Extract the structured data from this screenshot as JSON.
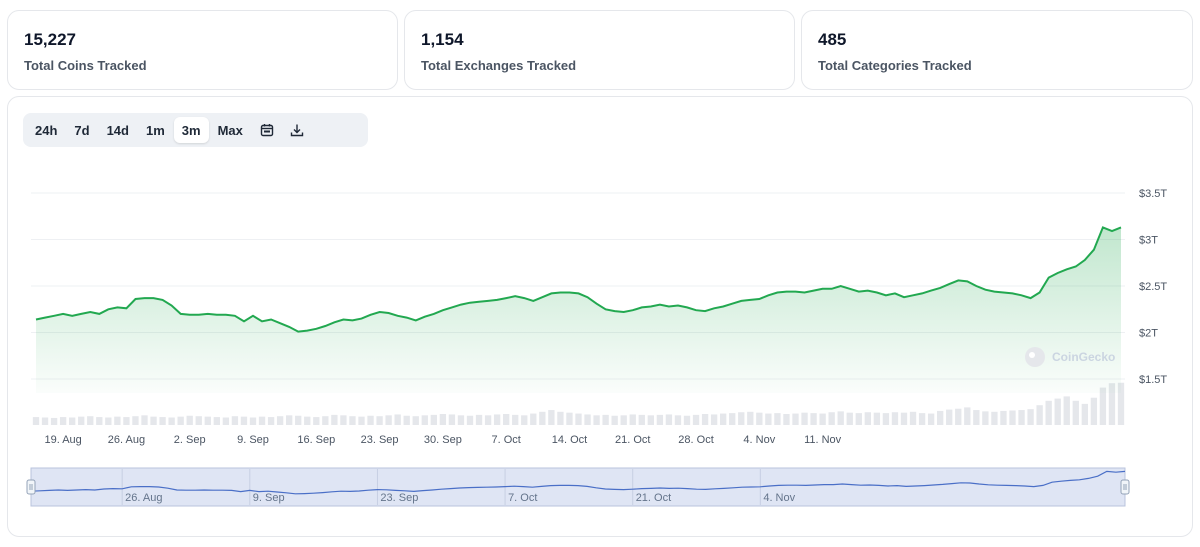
{
  "stats": [
    {
      "value": "15,227",
      "label": "Total Coins Tracked"
    },
    {
      "value": "1,154",
      "label": "Total Exchanges Tracked"
    },
    {
      "value": "485",
      "label": "Total Categories Tracked"
    }
  ],
  "toolbar": {
    "ranges": [
      "24h",
      "7d",
      "14d",
      "1m",
      "3m",
      "Max"
    ],
    "active_range": "3m",
    "calendar_icon": "calendar-icon",
    "download_icon": "download-icon"
  },
  "watermark": "CoinGecko",
  "colors": {
    "line": "#22a850",
    "volume": "#e5e7eb",
    "navigator_line": "#4a6fc7",
    "navigator_fill": "#dfe5f4"
  },
  "chart_data": {
    "type": "area",
    "ylabel": "",
    "xlabel": "",
    "ylim": [
      1.5,
      3.5
    ],
    "yticks": [
      1.5,
      2,
      2.5,
      3,
      3.5
    ],
    "ytick_labels": [
      "$1.5T",
      "$2T",
      "$2.5T",
      "$3T",
      "$3.5T"
    ],
    "xtick_labels": [
      "19. Aug",
      "26. Aug",
      "2. Sep",
      "9. Sep",
      "16. Sep",
      "23. Sep",
      "30. Sep",
      "7. Oct",
      "14. Oct",
      "21. Oct",
      "28. Oct",
      "4. Nov",
      "11. Nov"
    ],
    "navigator_tick_labels": [
      "26. Aug",
      "9. Sep",
      "23. Sep",
      "7. Oct",
      "21. Oct",
      "4. Nov"
    ],
    "x_start": "2024-08-16",
    "x_end": "2024-11-13",
    "series": [
      {
        "values": [
          2.14,
          2.16,
          2.18,
          2.2,
          2.18,
          2.2,
          2.22,
          2.2,
          2.25,
          2.27,
          2.26,
          2.36,
          2.37,
          2.37,
          2.35,
          2.29,
          2.2,
          2.19,
          2.19,
          2.2,
          2.19,
          2.19,
          2.18,
          2.12,
          2.18,
          2.12,
          2.14,
          2.1,
          2.06,
          2.01,
          2.02,
          2.04,
          2.07,
          2.11,
          2.14,
          2.13,
          2.15,
          2.19,
          2.22,
          2.21,
          2.18,
          2.16,
          2.13,
          2.17,
          2.2,
          2.24,
          2.27,
          2.3,
          2.32,
          2.33,
          2.34,
          2.35,
          2.37,
          2.39,
          2.37,
          2.34,
          2.38,
          2.42,
          2.43,
          2.43,
          2.42,
          2.38,
          2.31,
          2.25,
          2.23,
          2.22,
          2.24,
          2.27,
          2.28,
          2.3,
          2.28,
          2.29,
          2.27,
          2.24,
          2.23,
          2.26,
          2.28,
          2.31,
          2.34,
          2.35,
          2.36,
          2.4,
          2.43,
          2.44,
          2.44,
          2.43,
          2.45,
          2.47,
          2.47,
          2.5,
          2.47,
          2.44,
          2.45,
          2.43,
          2.4,
          2.42,
          2.38,
          2.4,
          2.42,
          2.45,
          2.48,
          2.52,
          2.56,
          2.55,
          2.5,
          2.46,
          2.44,
          2.43,
          2.42,
          2.4,
          2.37,
          2.43,
          2.59,
          2.64,
          2.68,
          2.71,
          2.78,
          2.89,
          3.13,
          3.09,
          3.13
        ],
        "volume": [
          0.18,
          0.17,
          0.16,
          0.18,
          0.17,
          0.19,
          0.2,
          0.18,
          0.17,
          0.19,
          0.18,
          0.2,
          0.22,
          0.19,
          0.18,
          0.17,
          0.19,
          0.21,
          0.2,
          0.19,
          0.18,
          0.17,
          0.2,
          0.19,
          0.17,
          0.19,
          0.18,
          0.2,
          0.22,
          0.21,
          0.19,
          0.18,
          0.2,
          0.23,
          0.22,
          0.2,
          0.19,
          0.21,
          0.2,
          0.22,
          0.24,
          0.21,
          0.2,
          0.22,
          0.23,
          0.25,
          0.24,
          0.22,
          0.21,
          0.23,
          0.22,
          0.24,
          0.25,
          0.23,
          0.22,
          0.26,
          0.3,
          0.34,
          0.3,
          0.28,
          0.26,
          0.24,
          0.22,
          0.23,
          0.21,
          0.22,
          0.24,
          0.23,
          0.22,
          0.23,
          0.24,
          0.22,
          0.21,
          0.23,
          0.25,
          0.24,
          0.26,
          0.27,
          0.29,
          0.3,
          0.28,
          0.26,
          0.27,
          0.25,
          0.26,
          0.28,
          0.27,
          0.26,
          0.29,
          0.31,
          0.28,
          0.27,
          0.29,
          0.28,
          0.27,
          0.29,
          0.28,
          0.3,
          0.27,
          0.26,
          0.32,
          0.35,
          0.37,
          0.4,
          0.34,
          0.31,
          0.3,
          0.32,
          0.33,
          0.34,
          0.36,
          0.45,
          0.55,
          0.6,
          0.65,
          0.55,
          0.48,
          0.62,
          0.85,
          0.95,
          0.96
        ]
      }
    ],
    "grid": true,
    "legend": "none"
  }
}
